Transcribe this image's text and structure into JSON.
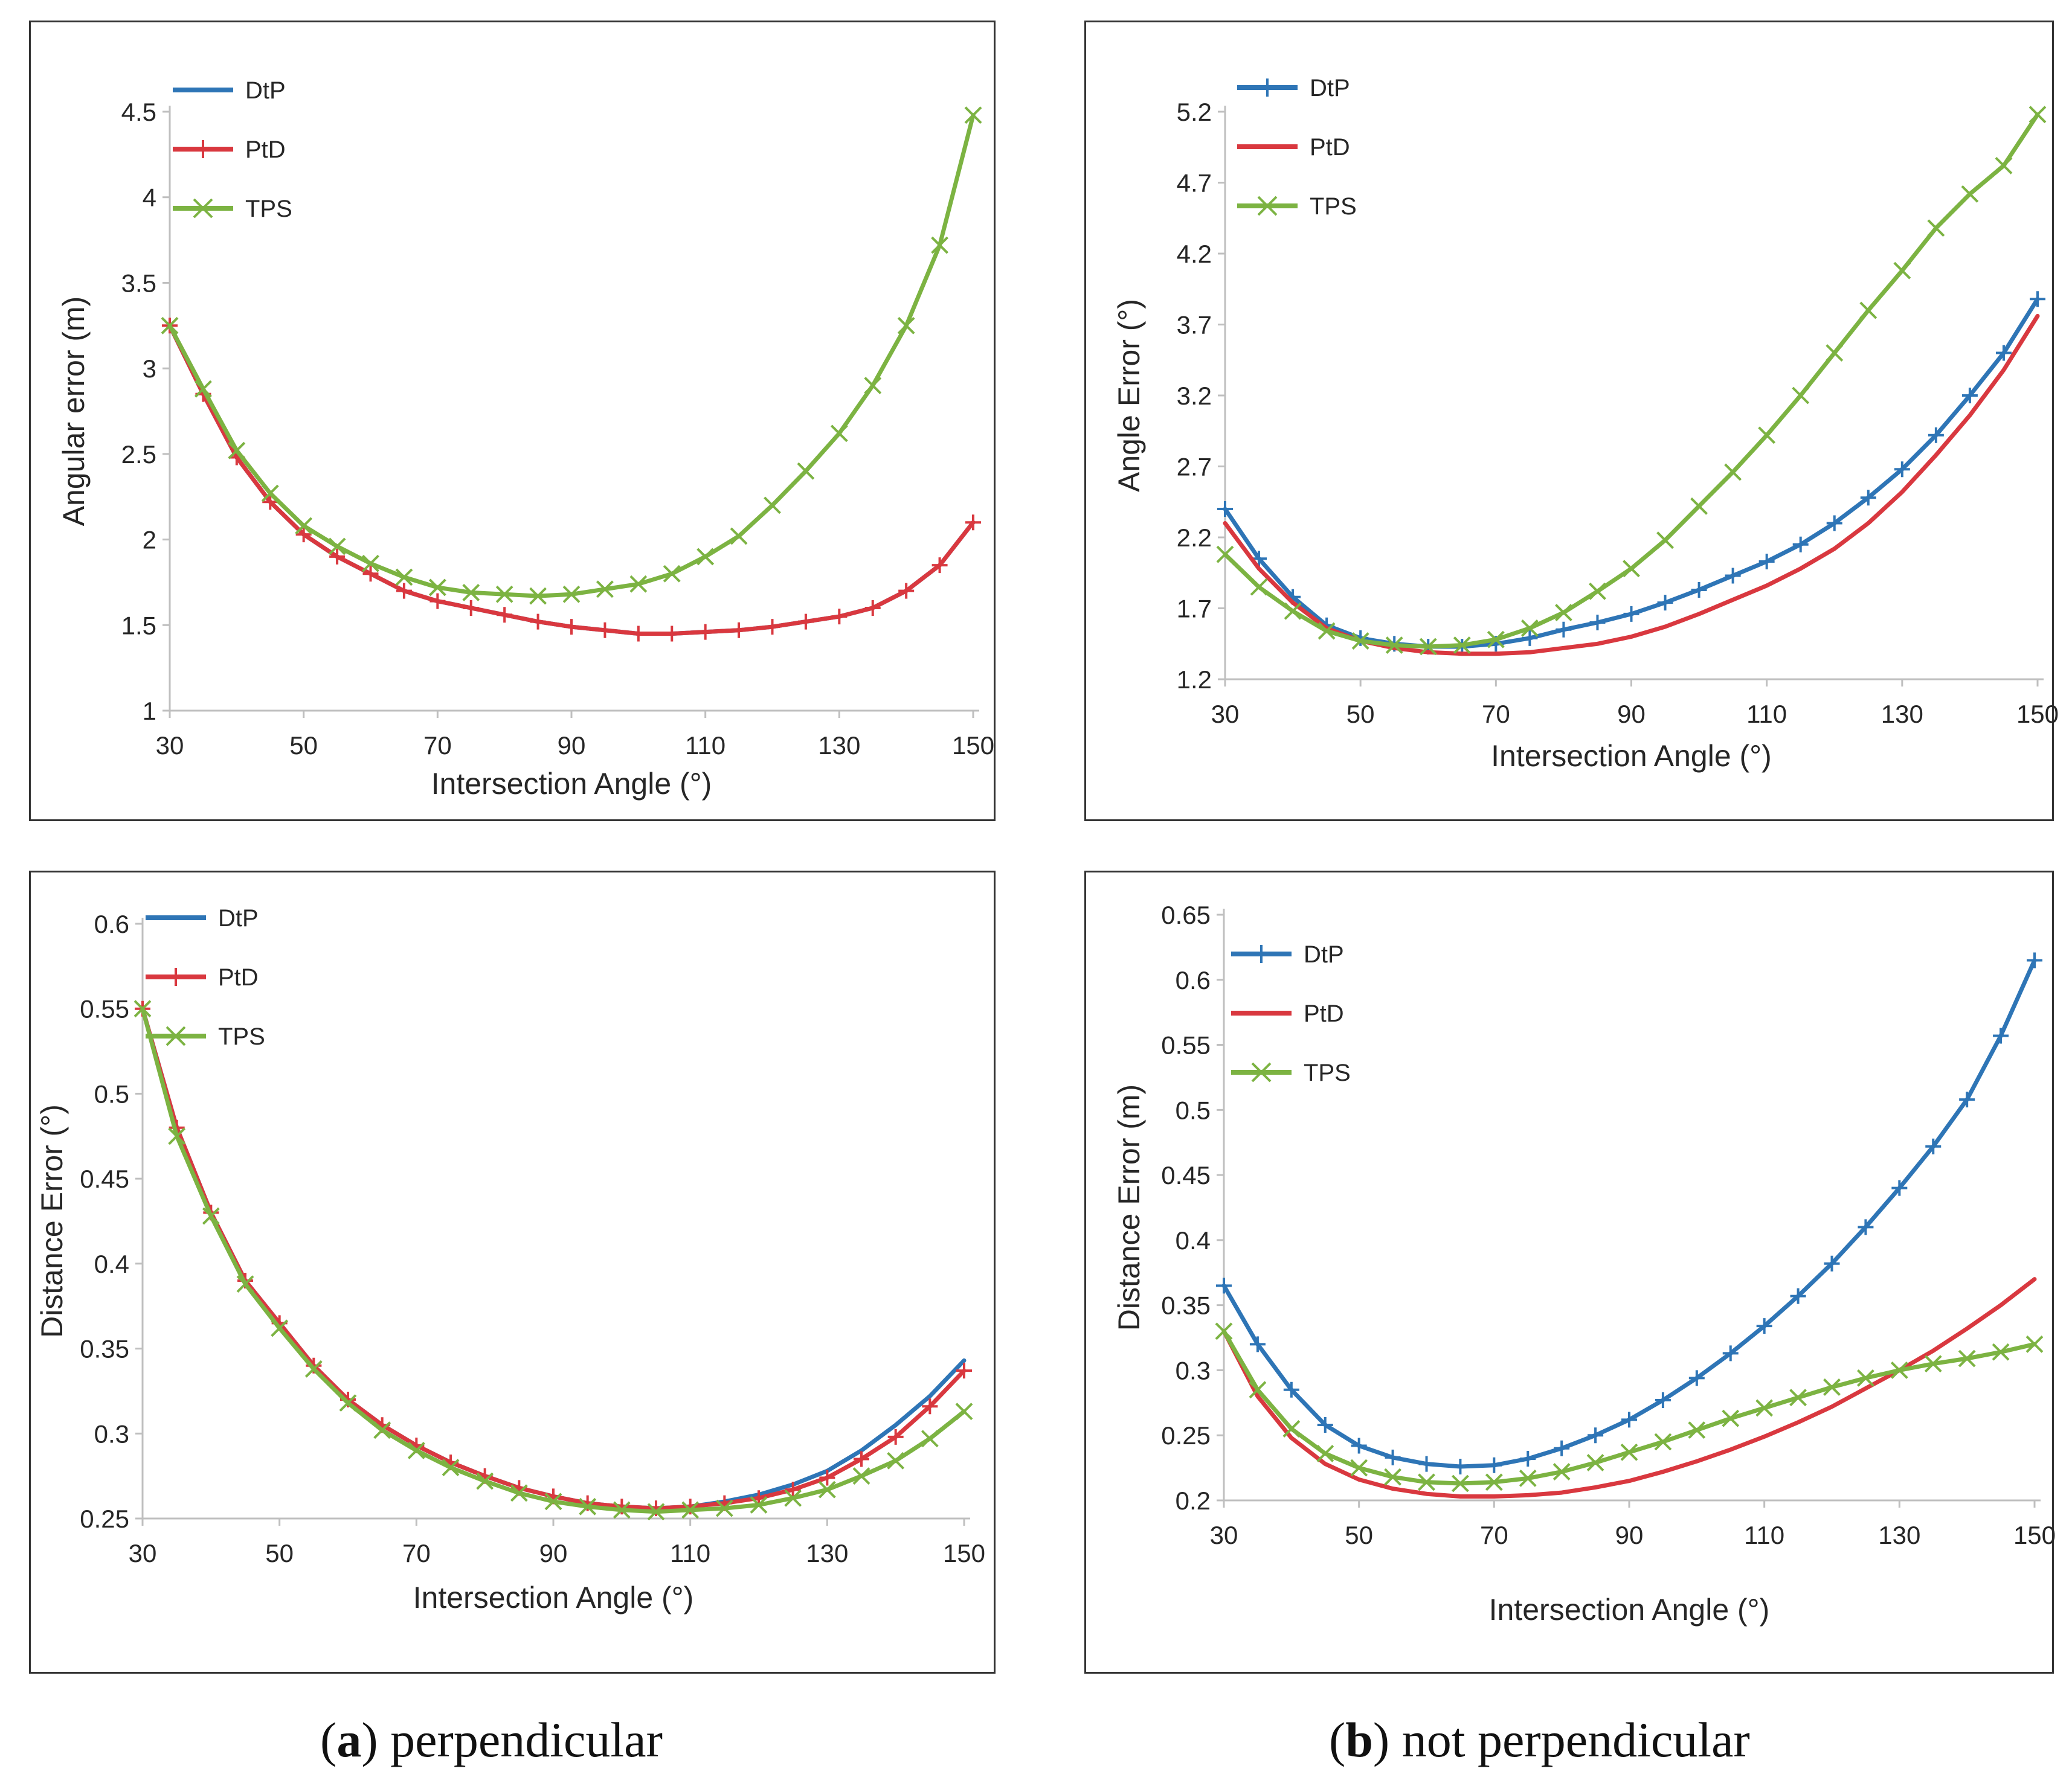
{
  "colors": {
    "DtP": "#2e75b6",
    "PtD": "#d9383f",
    "TPS": "#7cb342",
    "axis": "#bfbfbf",
    "text": "#262626"
  },
  "captions": {
    "a_letter": "a",
    "a_text": "perpendicular",
    "b_letter": "b",
    "b_text": "not perpendicular"
  },
  "chart_data": [
    {
      "id": "a-top",
      "type": "line",
      "title": "",
      "xlabel": "Intersection Angle (°)",
      "ylabel": "Angular error (m)",
      "xlim": [
        30,
        150
      ],
      "ylim": [
        1,
        4.5
      ],
      "xticks": [
        30,
        50,
        70,
        90,
        110,
        130,
        150
      ],
      "yticks": [
        1,
        1.5,
        2,
        2.5,
        3,
        3.5,
        4,
        4.5
      ],
      "yticklabels": [
        "1",
        "1.5",
        "2",
        "2.5",
        "3",
        "3.5",
        "4",
        "4.5"
      ],
      "series": [
        {
          "name": "DtP",
          "marker": "none",
          "x": [
            30,
            35,
            40,
            45,
            50,
            55,
            60,
            65,
            70,
            75,
            80,
            85,
            90,
            95,
            100,
            105,
            110,
            115,
            120,
            125,
            130,
            135,
            140,
            145,
            150
          ],
          "values": [
            3.25,
            2.85,
            2.48,
            2.22,
            2.03,
            1.9,
            1.8,
            1.7,
            1.64,
            1.6,
            1.56,
            1.52,
            1.49,
            1.47,
            1.45,
            1.45,
            1.46,
            1.47,
            1.49,
            1.52,
            1.55,
            1.6,
            1.7,
            1.85,
            2.1
          ]
        },
        {
          "name": "PtD",
          "marker": "plus",
          "x": [
            30,
            35,
            40,
            45,
            50,
            55,
            60,
            65,
            70,
            75,
            80,
            85,
            90,
            95,
            100,
            105,
            110,
            115,
            120,
            125,
            130,
            135,
            140,
            145,
            150
          ],
          "values": [
            3.25,
            2.85,
            2.48,
            2.22,
            2.03,
            1.9,
            1.8,
            1.7,
            1.64,
            1.6,
            1.56,
            1.52,
            1.49,
            1.47,
            1.45,
            1.45,
            1.46,
            1.47,
            1.49,
            1.52,
            1.55,
            1.6,
            1.7,
            1.85,
            2.1
          ]
        },
        {
          "name": "TPS",
          "marker": "x",
          "x": [
            30,
            35,
            40,
            45,
            50,
            55,
            60,
            65,
            70,
            75,
            80,
            85,
            90,
            95,
            100,
            105,
            110,
            115,
            120,
            125,
            130,
            135,
            140,
            145,
            150
          ],
          "values": [
            3.25,
            2.88,
            2.52,
            2.27,
            2.08,
            1.96,
            1.86,
            1.78,
            1.72,
            1.69,
            1.68,
            1.67,
            1.68,
            1.71,
            1.74,
            1.8,
            1.9,
            2.02,
            2.2,
            2.4,
            2.62,
            2.9,
            3.25,
            3.72,
            4.48
          ]
        }
      ]
    },
    {
      "id": "b-top",
      "type": "line",
      "title": "",
      "xlabel": "Intersection Angle (°)",
      "ylabel": "Angle Error (°)",
      "xlim": [
        30,
        150
      ],
      "ylim": [
        1.2,
        5.2
      ],
      "xticks": [
        30,
        50,
        70,
        90,
        110,
        130,
        150
      ],
      "yticks": [
        1.2,
        1.7,
        2.2,
        2.7,
        3.2,
        3.7,
        4.2,
        4.7,
        5.2
      ],
      "yticklabels": [
        "1.2",
        "1.7",
        "2.2",
        "2.7",
        "3.2",
        "3.7",
        "4.2",
        "4.7",
        "5.2"
      ],
      "series": [
        {
          "name": "DtP",
          "marker": "plus",
          "x": [
            30,
            35,
            40,
            45,
            50,
            55,
            60,
            65,
            70,
            75,
            80,
            85,
            90,
            95,
            100,
            105,
            110,
            115,
            120,
            125,
            130,
            135,
            140,
            145,
            150
          ],
          "values": [
            2.4,
            2.05,
            1.78,
            1.58,
            1.49,
            1.45,
            1.43,
            1.43,
            1.45,
            1.49,
            1.55,
            1.6,
            1.66,
            1.74,
            1.83,
            1.93,
            2.03,
            2.15,
            2.3,
            2.48,
            2.68,
            2.92,
            3.2,
            3.5,
            3.88
          ]
        },
        {
          "name": "PtD",
          "marker": "none",
          "x": [
            30,
            35,
            40,
            45,
            50,
            55,
            60,
            65,
            70,
            75,
            80,
            85,
            90,
            95,
            100,
            105,
            110,
            115,
            120,
            125,
            130,
            135,
            140,
            145,
            150
          ],
          "values": [
            2.3,
            1.98,
            1.74,
            1.56,
            1.47,
            1.42,
            1.39,
            1.38,
            1.38,
            1.39,
            1.42,
            1.45,
            1.5,
            1.57,
            1.66,
            1.76,
            1.86,
            1.98,
            2.12,
            2.3,
            2.52,
            2.78,
            3.06,
            3.38,
            3.76
          ]
        },
        {
          "name": "TPS",
          "marker": "x",
          "x": [
            30,
            35,
            40,
            45,
            50,
            55,
            60,
            65,
            70,
            75,
            80,
            85,
            90,
            95,
            100,
            105,
            110,
            115,
            120,
            125,
            130,
            135,
            140,
            145,
            150
          ],
          "values": [
            2.08,
            1.85,
            1.68,
            1.54,
            1.47,
            1.44,
            1.43,
            1.44,
            1.48,
            1.56,
            1.67,
            1.82,
            1.98,
            2.18,
            2.42,
            2.66,
            2.92,
            3.2,
            3.5,
            3.8,
            4.08,
            4.38,
            4.62,
            4.82,
            5.18
          ]
        }
      ]
    },
    {
      "id": "a-bottom",
      "type": "line",
      "title": "",
      "xlabel": "Intersection Angle (°)",
      "ylabel": "Distance Error (°)",
      "xlim": [
        30,
        150
      ],
      "ylim": [
        0.25,
        0.6
      ],
      "xticks": [
        30,
        50,
        70,
        90,
        110,
        130,
        150
      ],
      "yticks": [
        0.25,
        0.3,
        0.35,
        0.4,
        0.45,
        0.5,
        0.55,
        0.6
      ],
      "yticklabels": [
        "0.25",
        "0.3",
        "0.35",
        "0.4",
        "0.45",
        "0.5",
        "0.55",
        "0.6"
      ],
      "series": [
        {
          "name": "DtP",
          "marker": "none",
          "x": [
            30,
            35,
            40,
            45,
            50,
            55,
            60,
            65,
            70,
            75,
            80,
            85,
            90,
            95,
            100,
            105,
            110,
            115,
            120,
            125,
            130,
            135,
            140,
            145,
            150
          ],
          "values": [
            0.55,
            0.48,
            0.43,
            0.39,
            0.365,
            0.34,
            0.32,
            0.305,
            0.293,
            0.283,
            0.275,
            0.268,
            0.263,
            0.259,
            0.257,
            0.256,
            0.257,
            0.26,
            0.264,
            0.27,
            0.278,
            0.29,
            0.305,
            0.322,
            0.343
          ]
        },
        {
          "name": "PtD",
          "marker": "plus",
          "x": [
            30,
            35,
            40,
            45,
            50,
            55,
            60,
            65,
            70,
            75,
            80,
            85,
            90,
            95,
            100,
            105,
            110,
            115,
            120,
            125,
            130,
            135,
            140,
            145,
            150
          ],
          "values": [
            0.55,
            0.48,
            0.43,
            0.39,
            0.365,
            0.34,
            0.32,
            0.305,
            0.293,
            0.283,
            0.275,
            0.268,
            0.263,
            0.259,
            0.257,
            0.256,
            0.257,
            0.259,
            0.262,
            0.267,
            0.274,
            0.285,
            0.298,
            0.316,
            0.337
          ]
        },
        {
          "name": "TPS",
          "marker": "x",
          "x": [
            30,
            35,
            40,
            45,
            50,
            55,
            60,
            65,
            70,
            75,
            80,
            85,
            90,
            95,
            100,
            105,
            110,
            115,
            120,
            125,
            130,
            135,
            140,
            145,
            150
          ],
          "values": [
            0.55,
            0.475,
            0.428,
            0.388,
            0.362,
            0.338,
            0.318,
            0.302,
            0.29,
            0.28,
            0.272,
            0.265,
            0.26,
            0.257,
            0.255,
            0.254,
            0.255,
            0.256,
            0.258,
            0.262,
            0.267,
            0.275,
            0.284,
            0.297,
            0.313
          ]
        }
      ]
    },
    {
      "id": "b-bottom",
      "type": "line",
      "title": "",
      "xlabel": "Intersection Angle (°)",
      "ylabel": "Distance Error (m)",
      "xlim": [
        30,
        150
      ],
      "ylim": [
        0.2,
        0.65
      ],
      "xticks": [
        30,
        50,
        70,
        90,
        110,
        130,
        150
      ],
      "yticks": [
        0.2,
        0.25,
        0.3,
        0.35,
        0.4,
        0.45,
        0.5,
        0.55,
        0.6,
        0.65
      ],
      "yticklabels": [
        "0.2",
        "0.25",
        "0.3",
        "0.35",
        "0.4",
        "0.45",
        "0.5",
        "0.55",
        "0.6",
        "0.65"
      ],
      "series": [
        {
          "name": "DtP",
          "marker": "plus",
          "x": [
            30,
            35,
            40,
            45,
            50,
            55,
            60,
            65,
            70,
            75,
            80,
            85,
            90,
            95,
            100,
            105,
            110,
            115,
            120,
            125,
            130,
            135,
            140,
            145,
            150
          ],
          "values": [
            0.365,
            0.32,
            0.285,
            0.258,
            0.242,
            0.233,
            0.228,
            0.226,
            0.227,
            0.232,
            0.24,
            0.25,
            0.262,
            0.277,
            0.294,
            0.313,
            0.334,
            0.357,
            0.382,
            0.41,
            0.44,
            0.472,
            0.508,
            0.557,
            0.615
          ]
        },
        {
          "name": "PtD",
          "marker": "none",
          "x": [
            30,
            35,
            40,
            45,
            50,
            55,
            60,
            65,
            70,
            75,
            80,
            85,
            90,
            95,
            100,
            105,
            110,
            115,
            120,
            125,
            130,
            135,
            140,
            145,
            150
          ],
          "values": [
            0.33,
            0.28,
            0.248,
            0.228,
            0.216,
            0.209,
            0.205,
            0.203,
            0.203,
            0.204,
            0.206,
            0.21,
            0.215,
            0.222,
            0.23,
            0.239,
            0.249,
            0.26,
            0.272,
            0.286,
            0.3,
            0.315,
            0.332,
            0.35,
            0.37
          ]
        },
        {
          "name": "TPS",
          "marker": "x",
          "x": [
            30,
            35,
            40,
            45,
            50,
            55,
            60,
            65,
            70,
            75,
            80,
            85,
            90,
            95,
            100,
            105,
            110,
            115,
            120,
            125,
            130,
            135,
            140,
            145,
            150
          ],
          "values": [
            0.33,
            0.285,
            0.255,
            0.236,
            0.225,
            0.218,
            0.214,
            0.213,
            0.214,
            0.217,
            0.222,
            0.229,
            0.237,
            0.245,
            0.254,
            0.263,
            0.271,
            0.279,
            0.287,
            0.294,
            0.3,
            0.305,
            0.309,
            0.314,
            0.32
          ]
        }
      ]
    }
  ]
}
